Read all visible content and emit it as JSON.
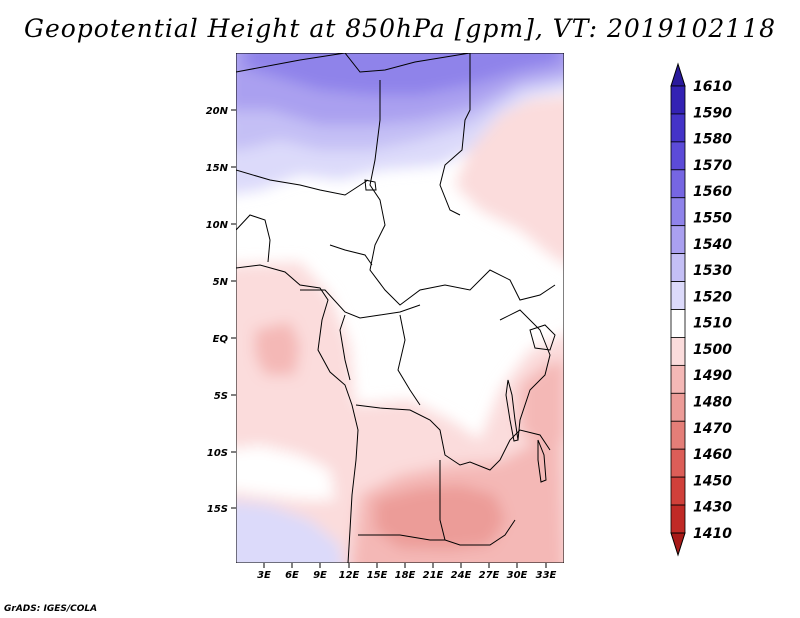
{
  "title": "Geopotential Height at 850hPa [gpm], VT: 2019102118",
  "credit": "GrADS: IGES/COLA",
  "map": {
    "lon_labels": [
      "3E",
      "6E",
      "9E",
      "12E",
      "15E",
      "18E",
      "21E",
      "24E",
      "27E",
      "30E",
      "33E"
    ],
    "lat_labels": [
      "20N",
      "15N",
      "10N",
      "5N",
      "EQ",
      "5S",
      "10S",
      "15S"
    ]
  },
  "legend": {
    "levels": [
      {
        "label": "1610",
        "color": "#2a1a9c"
      },
      {
        "label": "1590",
        "color": "#3322b4"
      },
      {
        "label": "1580",
        "color": "#4433c8"
      },
      {
        "label": "1570",
        "color": "#5c4bd8"
      },
      {
        "label": "1560",
        "color": "#7666e2"
      },
      {
        "label": "1550",
        "color": "#8f83ea"
      },
      {
        "label": "1540",
        "color": "#aaa0f0"
      },
      {
        "label": "1530",
        "color": "#c4bff5"
      },
      {
        "label": "1520",
        "color": "#dcdafa"
      },
      {
        "label": "1510",
        "color": "#ffffff"
      },
      {
        "label": "1500",
        "color": "#fbdcdc"
      },
      {
        "label": "1490",
        "color": "#f4b8b6"
      },
      {
        "label": "1480",
        "color": "#ec9c98"
      },
      {
        "label": "1470",
        "color": "#e47e78"
      },
      {
        "label": "1460",
        "color": "#dc5e58"
      },
      {
        "label": "1450",
        "color": "#d0403a"
      },
      {
        "label": "1430",
        "color": "#c02a26"
      },
      {
        "label": "1410",
        "color": "#a81a18"
      }
    ]
  }
}
